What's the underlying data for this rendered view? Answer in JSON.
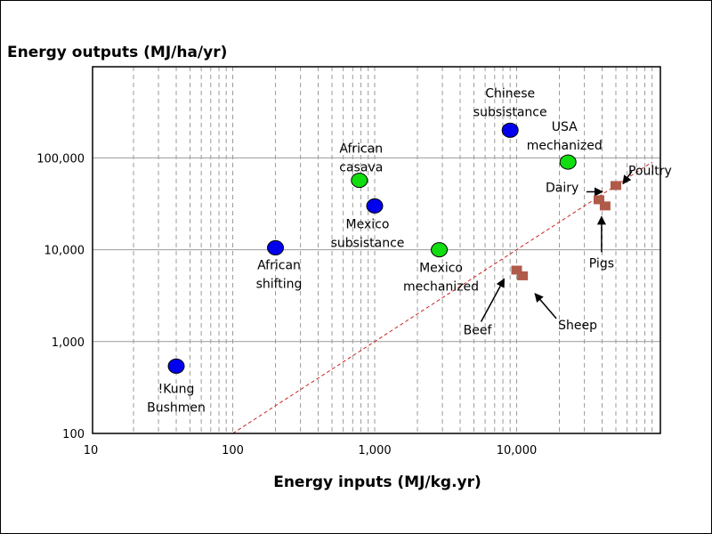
{
  "chart_data": {
    "type": "scatter",
    "title": "",
    "ylabel": "Energy outputs (MJ/ha/yr)",
    "xlabel": "Energy inputs (MJ/kg.yr)",
    "x_scale": "log",
    "y_scale": "log",
    "xlim": [
      10,
      100000
    ],
    "ylim": [
      100,
      1000000
    ],
    "x_ticks": [
      {
        "value": 10,
        "label": "10"
      },
      {
        "value": 100,
        "label": "100"
      },
      {
        "value": 1000,
        "label": "1,000"
      },
      {
        "value": 10000,
        "label": "10,000"
      }
    ],
    "y_ticks": [
      {
        "value": 100,
        "label": "100"
      },
      {
        "value": 1000,
        "label": "1,000"
      },
      {
        "value": 10000,
        "label": "10,000"
      },
      {
        "value": 100000,
        "label": "100,000"
      }
    ],
    "grid": {
      "x_minor_dashed": true,
      "y_major_solid": true
    },
    "reference_line": {
      "style": "dashed",
      "color": "#cc2222",
      "points": [
        [
          100,
          100
        ],
        [
          90000,
          90000
        ]
      ]
    },
    "colors": {
      "subsistence": "#0000ee",
      "mechanized": "#11dd11",
      "livestock": "#b05a4a"
    },
    "points": [
      {
        "label": "!Kung\nBushmen",
        "x": 40,
        "y": 540,
        "kind": "subsistence",
        "shape": "ellipse"
      },
      {
        "label": "African\nshifting",
        "x": 200,
        "y": 10500,
        "kind": "subsistence",
        "shape": "ellipse"
      },
      {
        "label": "Mexico\nsubsistance",
        "x": 1000,
        "y": 30000,
        "kind": "subsistence",
        "shape": "ellipse"
      },
      {
        "label": "Chinese\nsubsistance",
        "x": 9000,
        "y": 200000,
        "kind": "subsistence",
        "shape": "ellipse"
      },
      {
        "label": "African\ncasava",
        "x": 780,
        "y": 57000,
        "kind": "mechanized",
        "shape": "ellipse"
      },
      {
        "label": "Mexico\nmechanized",
        "x": 2850,
        "y": 10000,
        "kind": "mechanized",
        "shape": "ellipse"
      },
      {
        "label": "USA\nmechanized",
        "x": 23000,
        "y": 90000,
        "kind": "mechanized",
        "shape": "ellipse"
      },
      {
        "label": "Beef",
        "x": 10000,
        "y": 6000,
        "kind": "livestock",
        "shape": "square"
      },
      {
        "label": "Sheep",
        "x": 11000,
        "y": 5200,
        "kind": "livestock",
        "shape": "square"
      },
      {
        "label": "Dairy",
        "x": 38000,
        "y": 35000,
        "kind": "livestock",
        "shape": "square"
      },
      {
        "label": "Pigs",
        "x": 42000,
        "y": 30000,
        "kind": "livestock",
        "shape": "square"
      },
      {
        "label": "Poultry",
        "x": 50000,
        "y": 50000,
        "kind": "livestock",
        "shape": "square"
      }
    ]
  }
}
